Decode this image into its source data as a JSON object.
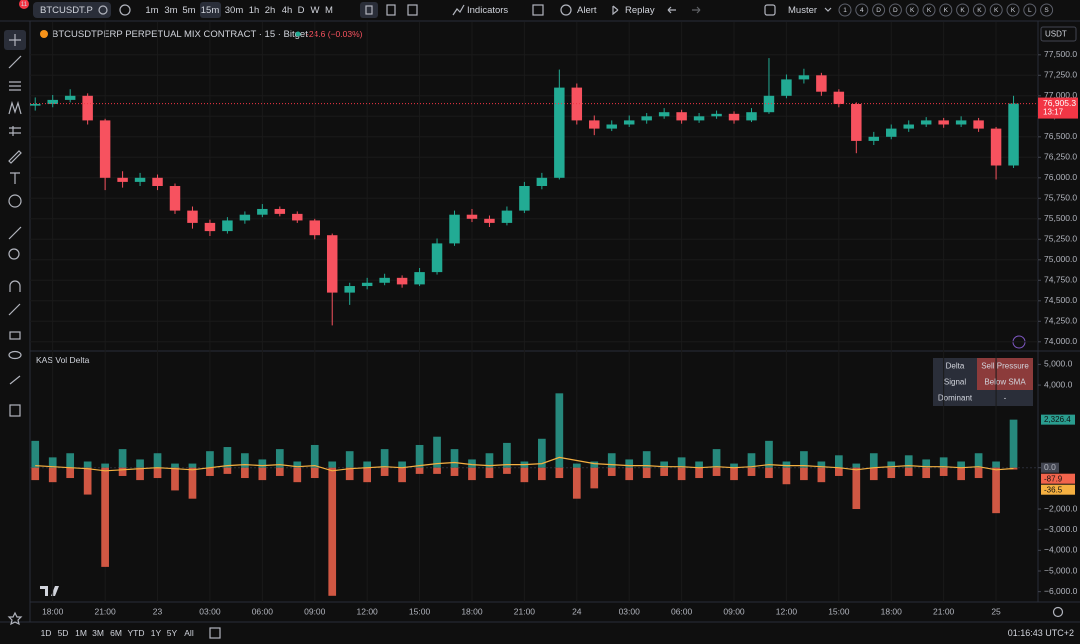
{
  "toolbar": {
    "badge": "11",
    "symbol": "BTCUSDT.P",
    "intervals": [
      "1m",
      "3m",
      "5m",
      "15m",
      "30m",
      "1h",
      "2h",
      "4h",
      "D",
      "W",
      "M"
    ],
    "indicators": "Indicators",
    "alert": "Alert",
    "replay": "Replay",
    "layout_name": "Muster",
    "shortcuts": [
      "1",
      "4",
      "D",
      "D",
      "K",
      "K",
      "K",
      "K",
      "K",
      "K",
      "K",
      "L",
      "S"
    ]
  },
  "legend": {
    "title": "BTCUSDTPERP PERPETUAL MIX CONTRACT · 15 · Bitget",
    "change": "-24.6 (−0.03%)"
  },
  "currency": "USDT",
  "indicator": {
    "title": "KAS Vol Delta",
    "table": [
      [
        "Delta",
        "Sell Pressure"
      ],
      [
        "Signal",
        "Below SMA"
      ],
      [
        "Dominant",
        "-"
      ]
    ]
  },
  "bottom": {
    "ranges": [
      "1D",
      "5D",
      "1M",
      "3M",
      "6M",
      "YTD",
      "1Y",
      "5Y",
      "All"
    ],
    "clock": "01:16:43 UTC+2"
  },
  "chart_data": [
    {
      "type": "candlestick",
      "up_color": "#22ab94",
      "down_color": "#f7525f",
      "grid": true,
      "last_price_label": "76,905.3",
      "countdown": "13:17",
      "xlim": [
        -1.3,
        56.4
      ],
      "xticks": [
        {
          "value": 0,
          "label": "18:00"
        },
        {
          "value": 3,
          "label": "21:00"
        },
        {
          "value": 6,
          "label": "23"
        },
        {
          "value": 9,
          "label": "03:00"
        },
        {
          "value": 12,
          "label": "06:00"
        },
        {
          "value": 15,
          "label": "09:00"
        },
        {
          "value": 18,
          "label": "12:00"
        },
        {
          "value": 21,
          "label": "15:00"
        },
        {
          "value": 24,
          "label": "18:00"
        },
        {
          "value": 27,
          "label": "21:00"
        },
        {
          "value": 30,
          "label": "24"
        },
        {
          "value": 33,
          "label": "03:00"
        },
        {
          "value": 36,
          "label": "06:00"
        },
        {
          "value": 39,
          "label": "09:00"
        },
        {
          "value": 42,
          "label": "12:00"
        },
        {
          "value": 45,
          "label": "15:00"
        },
        {
          "value": 48,
          "label": "18:00"
        },
        {
          "value": 51,
          "label": "21:00"
        },
        {
          "value": 54,
          "label": "25"
        }
      ],
      "ylim": [
        73900,
        77900
      ],
      "yticks": [
        {
          "value": 74000,
          "label": "74,000.0"
        },
        {
          "value": 74250,
          "label": "74,250.0"
        },
        {
          "value": 74500,
          "label": "74,500.0"
        },
        {
          "value": 74750,
          "label": "74,750.0"
        },
        {
          "value": 75000,
          "label": "75,000.0"
        },
        {
          "value": 75250,
          "label": "75,250.0"
        },
        {
          "value": 75500,
          "label": "75,500.0"
        },
        {
          "value": 75750,
          "label": "75,750.0"
        },
        {
          "value": 76000,
          "label": "76,000.0"
        },
        {
          "value": 76250,
          "label": "76,250.0"
        },
        {
          "value": 76500,
          "label": "76,500.0"
        },
        {
          "value": 76750,
          "label": "76,750.0"
        },
        {
          "value": 77000,
          "label": "77,000.0"
        },
        {
          "value": 77250,
          "label": "77,250.0"
        },
        {
          "value": 77500,
          "label": "77,500.0"
        }
      ],
      "x": [
        -1,
        0,
        1,
        2,
        3,
        4,
        5,
        6,
        7,
        8,
        9,
        10,
        11,
        12,
        13,
        14,
        15,
        16,
        17,
        18,
        19,
        20,
        21,
        22,
        23,
        24,
        25,
        26,
        27,
        28,
        29,
        30,
        31,
        32,
        33,
        34,
        35,
        36,
        37,
        38,
        39,
        40,
        41,
        42,
        43,
        44,
        45,
        46,
        47,
        48,
        49,
        50,
        51,
        52,
        53,
        54,
        55
      ],
      "candles": [
        [
          76880,
          76980,
          76820,
          76900
        ],
        [
          76900,
          77010,
          76860,
          76950
        ],
        [
          76950,
          77080,
          76920,
          77000
        ],
        [
          77000,
          77030,
          76650,
          76700
        ],
        [
          76700,
          76720,
          75850,
          76000
        ],
        [
          76000,
          76080,
          75880,
          75950
        ],
        [
          75950,
          76060,
          75900,
          76000
        ],
        [
          76000,
          76040,
          75850,
          75900
        ],
        [
          75900,
          75930,
          75560,
          75600
        ],
        [
          75600,
          75650,
          75380,
          75450
        ],
        [
          75450,
          75490,
          75290,
          75350
        ],
        [
          75350,
          75520,
          75320,
          75480
        ],
        [
          75480,
          75590,
          75440,
          75550
        ],
        [
          75550,
          75680,
          75520,
          75620
        ],
        [
          75620,
          75650,
          75530,
          75560
        ],
        [
          75560,
          75590,
          75450,
          75480
        ],
        [
          75480,
          75500,
          75250,
          75300
        ],
        [
          75300,
          75320,
          74200,
          74600
        ],
        [
          74600,
          74720,
          74450,
          74680
        ],
        [
          74680,
          74780,
          74640,
          74720
        ],
        [
          74720,
          74830,
          74690,
          74780
        ],
        [
          74780,
          74810,
          74660,
          74700
        ],
        [
          74700,
          74900,
          74680,
          74850
        ],
        [
          74850,
          75260,
          74820,
          75200
        ],
        [
          75200,
          75600,
          75170,
          75550
        ],
        [
          75550,
          75620,
          75460,
          75500
        ],
        [
          75500,
          75540,
          75400,
          75450
        ],
        [
          75450,
          75650,
          75420,
          75600
        ],
        [
          75600,
          75950,
          75570,
          75900
        ],
        [
          75900,
          76060,
          75860,
          76000
        ],
        [
          76000,
          77320,
          75980,
          77100
        ],
        [
          77100,
          77150,
          76650,
          76700
        ],
        [
          76700,
          76760,
          76520,
          76600
        ],
        [
          76600,
          76700,
          76570,
          76650
        ],
        [
          76650,
          76760,
          76620,
          76700
        ],
        [
          76700,
          76790,
          76660,
          76750
        ],
        [
          76750,
          76850,
          76720,
          76800
        ],
        [
          76800,
          76830,
          76660,
          76700
        ],
        [
          76700,
          76790,
          76670,
          76750
        ],
        [
          76750,
          76820,
          76720,
          76780
        ],
        [
          76780,
          76810,
          76660,
          76700
        ],
        [
          76700,
          76850,
          76680,
          76800
        ],
        [
          76800,
          77460,
          76780,
          77000
        ],
        [
          77000,
          77260,
          76970,
          77200
        ],
        [
          77200,
          77330,
          77150,
          77250
        ],
        [
          77250,
          77280,
          77000,
          77050
        ],
        [
          77050,
          77080,
          76860,
          76900
        ],
        [
          76900,
          76920,
          76300,
          76450
        ],
        [
          76450,
          76560,
          76400,
          76500
        ],
        [
          76500,
          76650,
          76470,
          76600
        ],
        [
          76600,
          76700,
          76560,
          76650
        ],
        [
          76650,
          76740,
          76620,
          76700
        ],
        [
          76700,
          76730,
          76610,
          76650
        ],
        [
          76650,
          76750,
          76620,
          76700
        ],
        [
          76700,
          76730,
          76560,
          76600
        ],
        [
          76600,
          76620,
          75980,
          76150
        ],
        [
          76150,
          77000,
          76120,
          76905.3
        ]
      ]
    },
    {
      "type": "bar",
      "ylim": [
        -6500,
        5600
      ],
      "yticks": [
        {
          "value": 5000,
          "label": "5,000.0"
        },
        {
          "value": 4000,
          "label": "4,000.0"
        },
        {
          "value": 0,
          "label": "0.0"
        },
        {
          "value": -2000,
          "label": "−2,000.0"
        },
        {
          "value": -3000,
          "label": "−3,000.0"
        },
        {
          "value": -4000,
          "label": "−4,000.0"
        },
        {
          "value": -5000,
          "label": "−5,000.0"
        },
        {
          "value": -6000,
          "label": "−6,000.0"
        }
      ],
      "series": [
        {
          "color": "#2a9d8f",
          "last_label": "2,326.4",
          "values": [
            1300,
            500,
            700,
            300,
            200,
            900,
            400,
            700,
            200,
            200,
            800,
            1000,
            700,
            400,
            900,
            300,
            1100,
            300,
            800,
            300,
            900,
            300,
            1100,
            1500,
            900,
            400,
            700,
            1200,
            300,
            1400,
            3600,
            200,
            300,
            700,
            400,
            800,
            300,
            500,
            300,
            900,
            200,
            700,
            1300,
            300,
            800,
            300,
            600,
            200,
            700,
            300,
            600,
            400,
            500,
            300,
            700,
            300,
            2326.4
          ]
        },
        {
          "color": "#f2644c",
          "last_label": "-87.9",
          "values": [
            -600,
            -700,
            -500,
            -1300,
            -4800,
            -400,
            -600,
            -500,
            -1100,
            -1500,
            -400,
            -300,
            -500,
            -600,
            -400,
            -700,
            -500,
            -6200,
            -600,
            -700,
            -400,
            -700,
            -300,
            -300,
            -400,
            -600,
            -500,
            -300,
            -700,
            -600,
            -500,
            -1500,
            -1000,
            -400,
            -600,
            -500,
            -400,
            -600,
            -500,
            -400,
            -600,
            -400,
            -500,
            -800,
            -600,
            -700,
            -400,
            -2000,
            -600,
            -500,
            -400,
            -500,
            -400,
            -600,
            -500,
            -2200,
            -87.9
          ]
        },
        {
          "type": "line",
          "color": "#f5b041",
          "last_label": "-36.5",
          "values": [
            100,
            50,
            0,
            -50,
            -150,
            -100,
            -50,
            0,
            -50,
            -100,
            0,
            100,
            150,
            100,
            150,
            50,
            100,
            -150,
            -50,
            0,
            50,
            0,
            100,
            200,
            250,
            150,
            100,
            150,
            150,
            200,
            500,
            350,
            200,
            150,
            100,
            100,
            50,
            50,
            0,
            50,
            0,
            50,
            150,
            100,
            100,
            50,
            0,
            -100,
            0,
            50,
            100,
            50,
            50,
            0,
            50,
            -100,
            -36.5
          ]
        }
      ]
    }
  ]
}
